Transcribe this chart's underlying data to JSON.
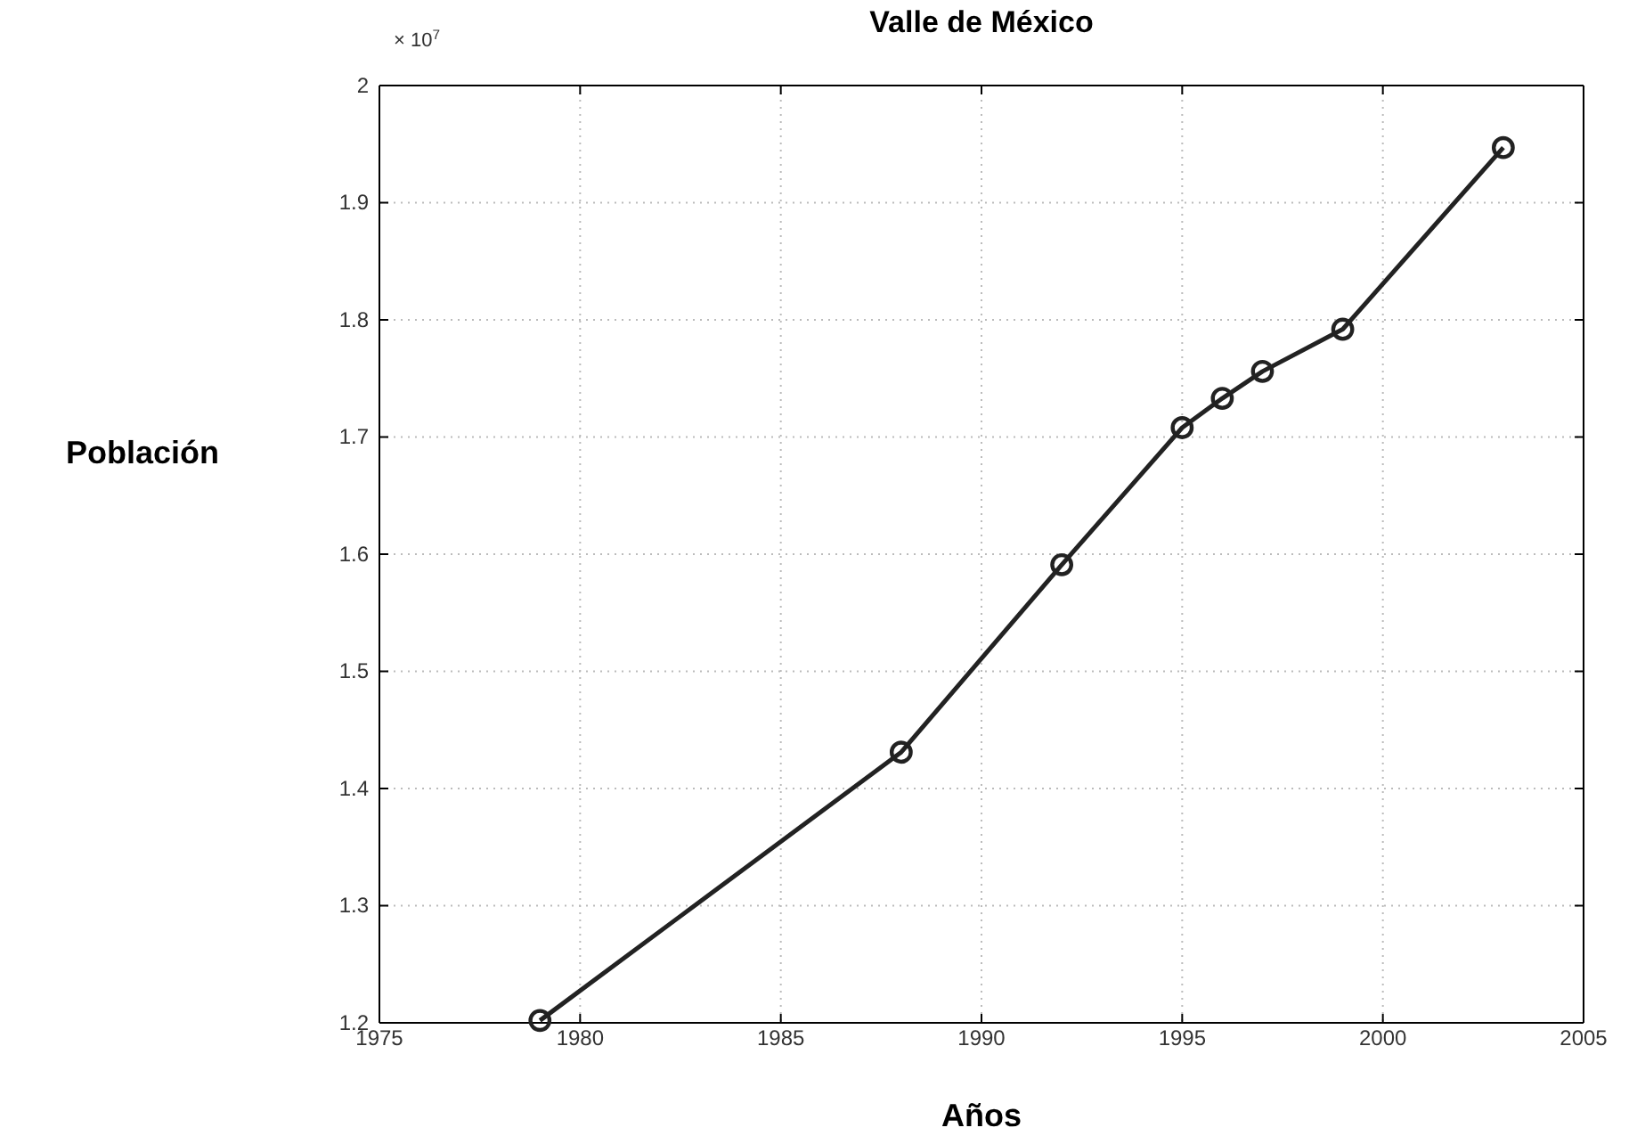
{
  "chart_data": {
    "type": "line",
    "title": "Valle de México",
    "xlabel": "Años",
    "ylabel": "Población",
    "annotations": [
      "× 10$^{7}$"
    ],
    "x": [
      1979,
      1988,
      1992,
      1995,
      1996,
      1997,
      1999,
      2003
    ],
    "series": [
      {
        "color": "#222222",
        "values": [
          1.202,
          1.431,
          1.591,
          1.708,
          1.733,
          1.756,
          1.792,
          1.947
        ]
      }
    ],
    "xlim": [
      1975,
      2005
    ],
    "xticks": [
      1975,
      1980,
      1985,
      1990,
      1995,
      2000,
      2005
    ],
    "ylim": [
      1.2,
      2
    ],
    "yticks": [
      1.2,
      1.3,
      1.4,
      1.5,
      1.6,
      1.7,
      1.8,
      1.9,
      2
    ],
    "grid": true,
    "marker": "circle",
    "line_style": "solid"
  }
}
